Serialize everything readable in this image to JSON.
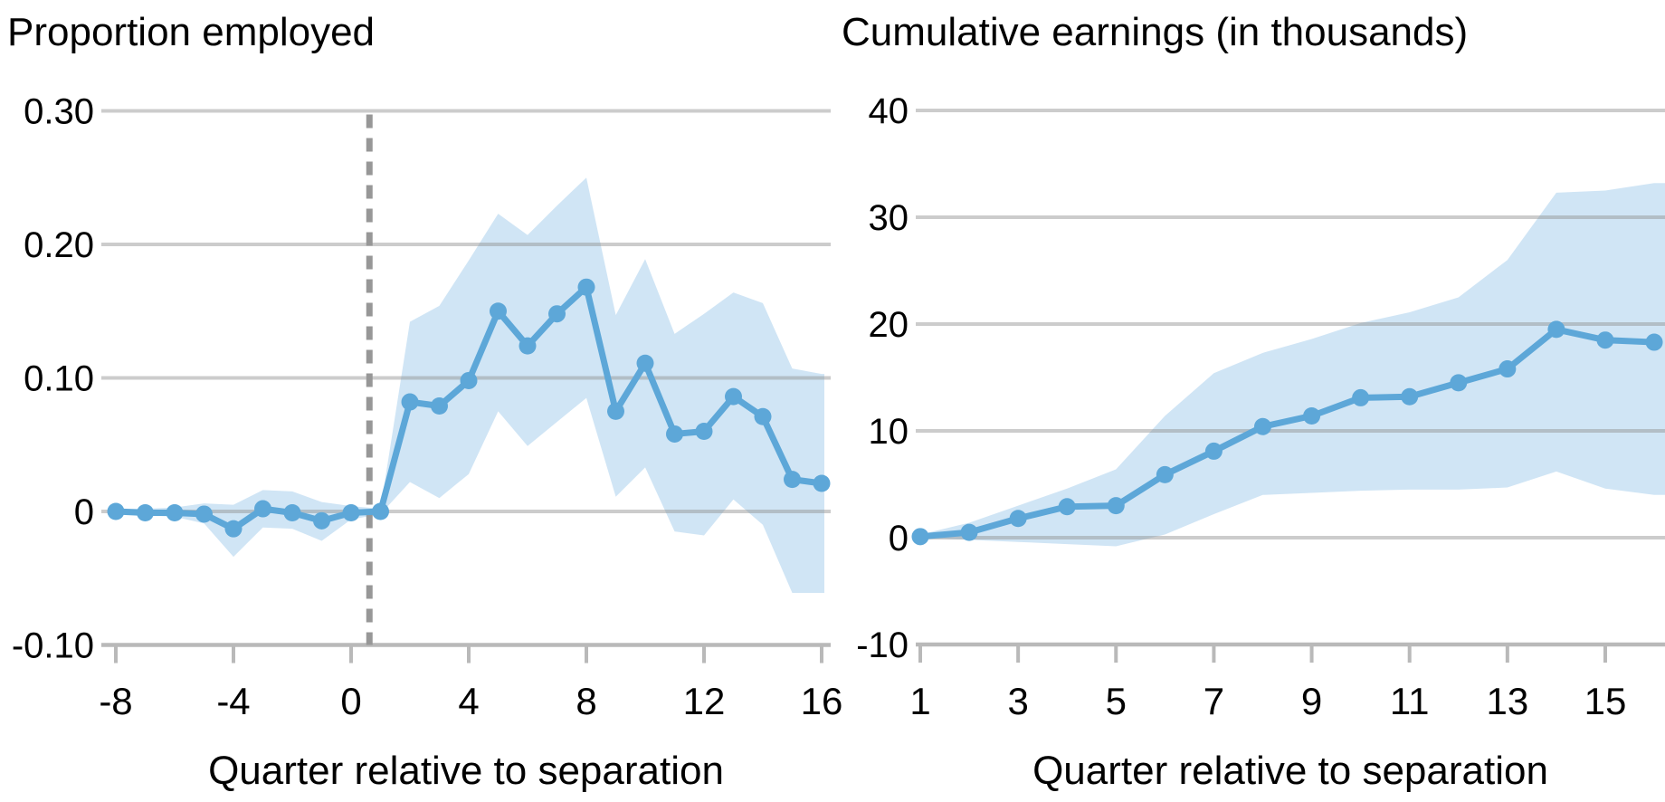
{
  "figure": {
    "background": "#ffffff",
    "left_title": "Proportion employed",
    "right_title": "Cumulative earnings (in thousands)",
    "left_xlabel": "Quarter relative to separation",
    "right_xlabel": "Quarter relative to separation"
  },
  "colors": {
    "line": "#5da7d8",
    "marker": "#5da7d8",
    "band": "#d0e5f5",
    "grid": "#8e8e8e",
    "axis": "#b9b9b9",
    "vline": "#979797",
    "text": "#000000"
  },
  "chart_data": [
    {
      "id": "employment",
      "type": "line",
      "title": "Proportion employed",
      "xlabel": "Quarter relative to separation",
      "ylabel": "",
      "legend_position": "none",
      "grid": "horizontal",
      "xlim": [
        -8.5,
        16.3
      ],
      "ylim": [
        -0.1,
        0.3
      ],
      "vline_x": 0.5,
      "vline_style": "dashed",
      "xticks": [
        -8,
        -4,
        0,
        4,
        8,
        12,
        16
      ],
      "xtick_labels": [
        "-8",
        "-4",
        "0",
        "4",
        "8",
        "12",
        "16"
      ],
      "yticks": [
        -0.1,
        0,
        0.1,
        0.2,
        0.3
      ],
      "ytick_labels": [
        "-0.10",
        "0",
        "0.10",
        "0.20",
        "0.30"
      ],
      "x": [
        -8,
        -7,
        -6,
        -5,
        -4,
        -3,
        -2,
        -1,
        0,
        1,
        2,
        3,
        4,
        5,
        6,
        7,
        8,
        9,
        10,
        11,
        12,
        13,
        14,
        15,
        16
      ],
      "y": [
        0.0,
        -0.001,
        -0.001,
        -0.002,
        -0.013,
        0.002,
        -0.001,
        -0.007,
        -0.001,
        0.0,
        0.082,
        0.079,
        0.098,
        0.15,
        0.124,
        0.148,
        0.168,
        0.075,
        0.111,
        0.058,
        0.06,
        0.086,
        0.071,
        0.024,
        0.021
      ],
      "band_upper": [
        0.002,
        0.002,
        0.003,
        0.006,
        0.005,
        0.016,
        0.015,
        0.007,
        0.004,
        0.002,
        0.142,
        0.154,
        0.188,
        0.223,
        0.207,
        0.229,
        0.25,
        0.147,
        0.189,
        0.133,
        0.148,
        0.164,
        0.156,
        0.107,
        0.103
      ],
      "band_lower": [
        -0.002,
        -0.003,
        -0.004,
        -0.009,
        -0.034,
        -0.012,
        -0.013,
        -0.022,
        -0.006,
        -0.002,
        0.022,
        0.01,
        0.028,
        0.075,
        0.049,
        0.067,
        0.085,
        0.011,
        0.033,
        -0.015,
        -0.018,
        0.009,
        -0.01,
        -0.061,
        -0.061
      ]
    },
    {
      "id": "earnings",
      "type": "line",
      "title": "Cumulative earnings (in thousands)",
      "xlabel": "Quarter relative to separation",
      "ylabel": "",
      "legend_position": "none",
      "grid": "horizontal",
      "xlim": [
        0.9,
        16.2
      ],
      "ylim": [
        -10,
        40
      ],
      "vline_x": null,
      "vline_style": null,
      "xticks": [
        1,
        3,
        5,
        7,
        9,
        11,
        13,
        15
      ],
      "xtick_labels": [
        "1",
        "3",
        "5",
        "7",
        "9",
        "11",
        "13",
        "15"
      ],
      "yticks": [
        -10,
        0,
        10,
        20,
        30,
        40
      ],
      "ytick_labels": [
        "-10",
        "0",
        "10",
        "20",
        "30",
        "40"
      ],
      "x": [
        1,
        2,
        3,
        4,
        5,
        6,
        7,
        8,
        9,
        10,
        11,
        12,
        13,
        14,
        15,
        16
      ],
      "y": [
        0.1,
        0.5,
        1.8,
        2.9,
        3.0,
        5.9,
        8.1,
        10.4,
        11.4,
        13.1,
        13.2,
        14.5,
        15.8,
        19.5,
        18.5,
        18.3
      ],
      "band_upper": [
        0.3,
        1.4,
        3.0,
        4.6,
        6.4,
        11.4,
        15.4,
        17.3,
        18.6,
        20.1,
        21.1,
        22.5,
        26.0,
        32.3,
        32.5,
        33.2
      ],
      "band_lower": [
        0.0,
        -0.2,
        -0.4,
        -0.6,
        -0.8,
        0.3,
        2.2,
        4.0,
        4.2,
        4.4,
        4.5,
        4.5,
        4.7,
        6.2,
        4.6,
        4.0
      ]
    }
  ]
}
